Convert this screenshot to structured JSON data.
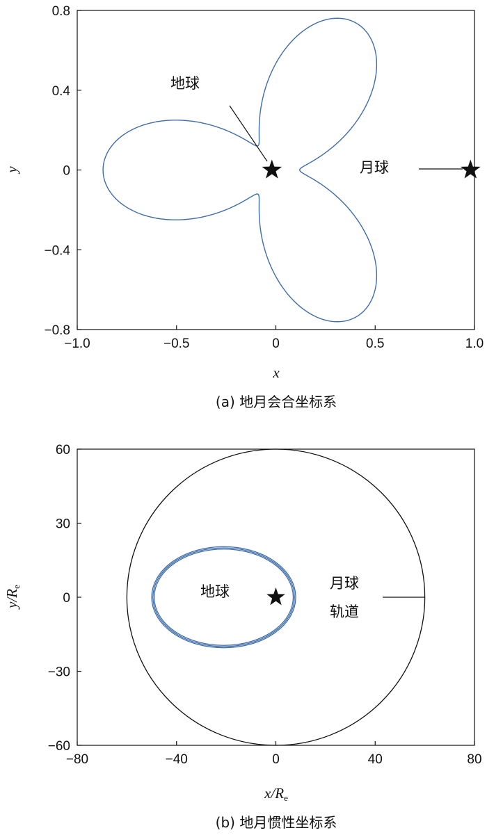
{
  "chart_data": [
    {
      "type": "line",
      "caption": "(a) 地月会合坐标系",
      "xlabel": "x",
      "ylabel": "y",
      "xlim": [
        -1.0,
        1.0
      ],
      "ylim": [
        -0.8,
        0.8
      ],
      "xticks": [
        "−1.0",
        "−0.5",
        "0",
        "0.5",
        "1.0"
      ],
      "xtick_values": [
        -1.0,
        -0.5,
        0,
        0.5,
        1.0
      ],
      "yticks": [
        "0.8",
        "0.4",
        "0",
        "−0.4",
        "−0.8"
      ],
      "ytick_values": [
        0.8,
        0.4,
        0,
        -0.4,
        -0.8
      ],
      "series": [
        {
          "name": "",
          "color": "#3f6da8",
          "shape": "three-lobed trajectory",
          "lobe_far": 0.85,
          "lobe_near": 0.14
        }
      ],
      "annotations": [
        {
          "text": "地球",
          "point": [
            -0.02,
            0.0
          ],
          "marker": "star"
        },
        {
          "text": "月球",
          "point": [
            0.98,
            0.0
          ],
          "marker": "star"
        }
      ]
    },
    {
      "type": "line",
      "caption": "(b) 地月惯性坐标系",
      "xlabel": "x/R",
      "xlabel_sub": "e",
      "ylabel": "y/R",
      "ylabel_sub": "e",
      "xlim": [
        -80,
        80
      ],
      "ylim": [
        -60,
        60
      ],
      "xticks": [
        "−80",
        "−40",
        "0",
        "40",
        "80"
      ],
      "xtick_values": [
        -80,
        -40,
        0,
        40,
        80
      ],
      "yticks": [
        "60",
        "30",
        "0",
        "−30",
        "−60"
      ],
      "ytick_values": [
        60,
        30,
        0,
        -30,
        -60
      ],
      "series": [
        {
          "name": "",
          "color": "#3f6da8",
          "shape": "near-elliptical orbits",
          "center": [
            -21,
            0
          ],
          "semi_axes": [
            [
              29,
              20.5
            ],
            [
              28.5,
              20
            ],
            [
              28,
              19.5
            ]
          ]
        },
        {
          "name": "",
          "color": "#111111",
          "shape": "circle",
          "center": [
            0,
            0
          ],
          "radius": 60
        }
      ],
      "annotations": [
        {
          "text": "地球",
          "point": [
            0,
            0
          ],
          "marker": "star"
        },
        {
          "text": "月球",
          "line2": "轨道",
          "point": [
            60,
            0
          ]
        }
      ]
    }
  ]
}
